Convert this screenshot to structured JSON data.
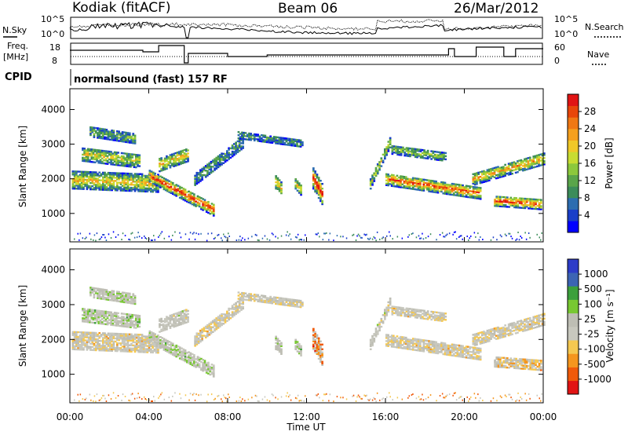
{
  "header": {
    "station": "Kodiak (fitACF)",
    "beam": "Beam 06",
    "date": "26/Mar/2012"
  },
  "strip_labels": {
    "nsky": "N.Sky",
    "nsearch": "N.Search",
    "freq": "Freq.",
    "freq_unit": "[MHz]",
    "nave": "Nave",
    "cpid": "CPID",
    "nsky_ticks": [
      "10^5",
      "10^0"
    ],
    "nsearch_ticks": [
      "10^5",
      "10^0"
    ],
    "freq_ticks": [
      "18",
      "8"
    ],
    "nave_ticks": [
      "60",
      "0"
    ],
    "program": "normalsound (fast) 157 RF"
  },
  "x_axis": {
    "label": "Time UT",
    "ticks": [
      "00:00",
      "04:00",
      "08:00",
      "12:00",
      "16:00",
      "20:00",
      "00:00"
    ]
  },
  "colors": {
    "power_scale": [
      "#0000ff",
      "#1a3fc8",
      "#2d6db0",
      "#3c8c5a",
      "#5aa54a",
      "#8cc83c",
      "#c8dc32",
      "#f0c828",
      "#f5a01e",
      "#f07814",
      "#e8460a",
      "#e11414"
    ],
    "velocity_scale": [
      "#e11414",
      "#f05a0a",
      "#f5961e",
      "#f5c850",
      "#c8c8be",
      "#bebeb4",
      "#78c832",
      "#3ca03c",
      "#3c64b4",
      "#2d3cc8"
    ]
  },
  "chart_data": [
    {
      "type": "heatmap",
      "name": "power",
      "ylabel": "Slant Range [km]",
      "yticks": [
        "1000",
        "2000",
        "3000",
        "4000"
      ],
      "ylim": [
        180,
        4600
      ],
      "xlim_hours": [
        0,
        24
      ],
      "colorbar_label": "Power [dB]",
      "colorbar_ticks": [
        "28",
        "24",
        "20",
        "16",
        "12",
        "8",
        "4"
      ],
      "colorbar_range": [
        0,
        32
      ],
      "grid": false
    },
    {
      "type": "heatmap",
      "name": "velocity",
      "ylabel": "Slant Range [km]",
      "yticks": [
        "1000",
        "2000",
        "3000",
        "4000"
      ],
      "ylim": [
        180,
        4600
      ],
      "xlim_hours": [
        0,
        24
      ],
      "colorbar_label": "Velocity [m s⁻¹]",
      "colorbar_ticks": [
        "1000",
        "500",
        "100",
        "25",
        "-25",
        "-100",
        "-500",
        "-1000"
      ],
      "grid": false
    }
  ]
}
